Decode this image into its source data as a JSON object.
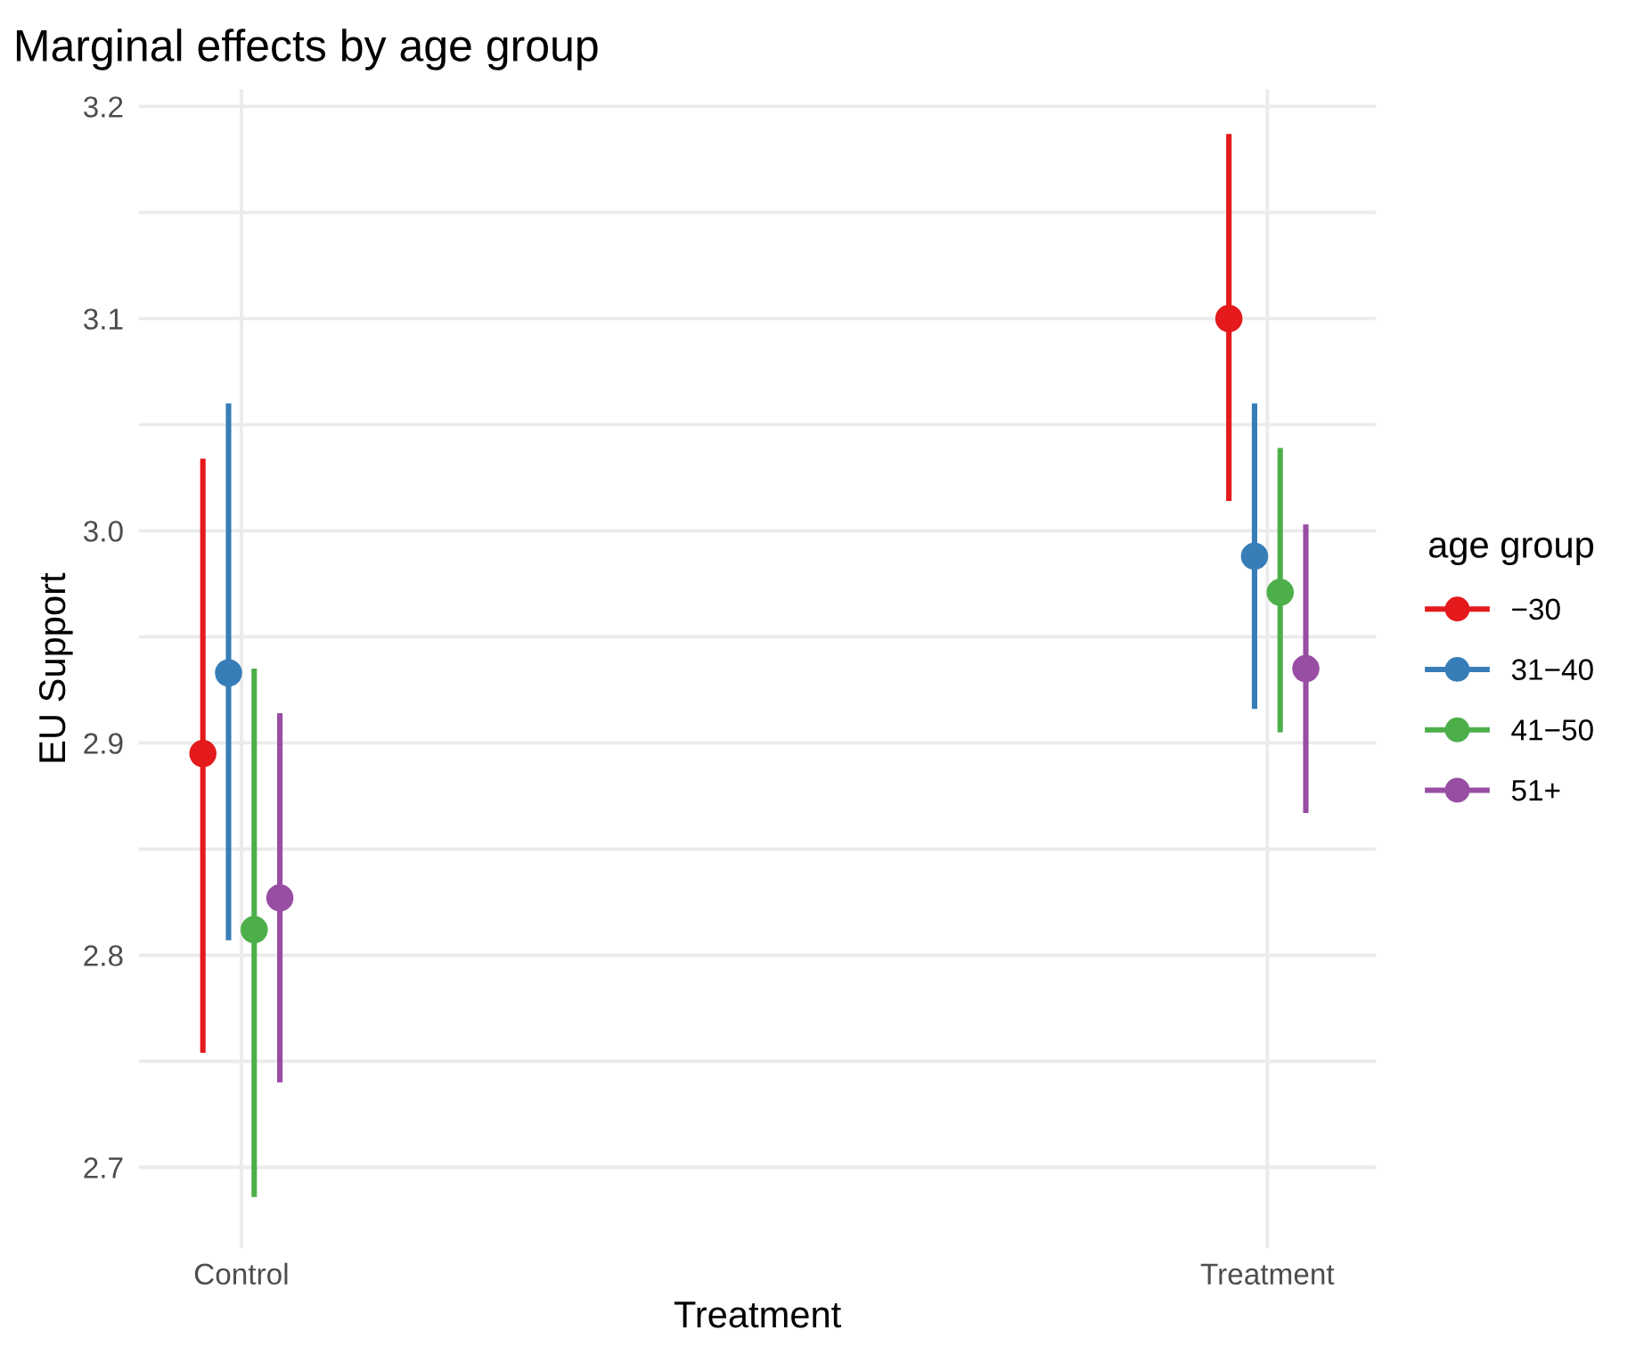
{
  "chart_data": {
    "type": "scatter",
    "title": "Marginal effects by age group",
    "xlabel": "Treatment",
    "ylabel": "EU Support",
    "legend_title": "age group",
    "categories": [
      "Control",
      "Treatment"
    ],
    "series": [
      {
        "name": "−30",
        "color": "#e41a1c",
        "values": [
          2.895,
          3.1
        ],
        "errors": [
          [
            2.754,
            3.034
          ],
          [
            3.014,
            3.187
          ]
        ]
      },
      {
        "name": "31−40",
        "color": "#377eb8",
        "values": [
          2.933,
          2.988
        ],
        "errors": [
          [
            2.807,
            3.06
          ],
          [
            2.916,
            3.06
          ]
        ]
      },
      {
        "name": "41−50",
        "color": "#4daf4a",
        "values": [
          2.812,
          2.971
        ],
        "errors": [
          [
            2.686,
            2.935
          ],
          [
            2.905,
            3.039
          ]
        ]
      },
      {
        "name": "51+",
        "color": "#984ea3",
        "values": [
          2.827,
          2.935
        ],
        "errors": [
          [
            2.74,
            2.914
          ],
          [
            2.867,
            3.003
          ]
        ]
      }
    ],
    "ylim": [
      2.662,
      3.208
    ],
    "yticks": [
      2.7,
      {
        "value": 2.75,
        "label": null
      },
      2.8,
      {
        "value": 2.85,
        "label": null
      },
      2.9,
      {
        "value": 2.95,
        "label": null
      },
      {
        "value": 3.0,
        "label": "3.0"
      },
      {
        "value": 3.05,
        "label": null
      },
      3.1,
      {
        "value": 3.15,
        "label": null
      },
      3.2
    ],
    "grid": true,
    "legend": "right",
    "marker": "circle"
  }
}
